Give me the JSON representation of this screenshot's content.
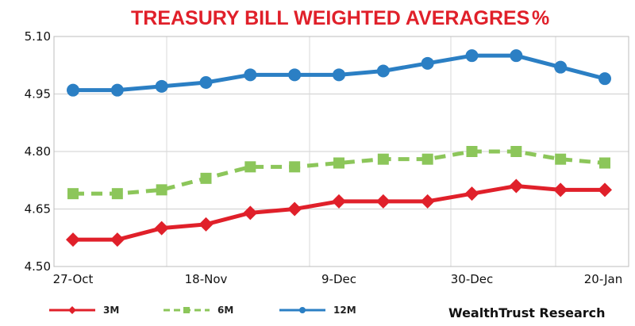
{
  "chart_data": {
    "type": "line",
    "title": "TREASURY BILL WEIGHTED AVERAGRES",
    "unit": "%",
    "source": "WealthTrust Research",
    "x_tick_labels": [
      "27-Oct",
      "18-Nov",
      "9-Dec",
      "30-Dec",
      "20-Jan"
    ],
    "x_tick_index": [
      0,
      3,
      6,
      9,
      12
    ],
    "y_tick_labels": [
      "4.50",
      "4.65",
      "4.80",
      "4.95",
      "5.10"
    ],
    "ylim": [
      4.5,
      5.1
    ],
    "grid": true,
    "legend_position": "bottom",
    "series": [
      {
        "name": "3M",
        "color": "#e0202a",
        "marker": "diamond",
        "values": [
          4.57,
          4.57,
          4.6,
          4.61,
          4.64,
          4.65,
          4.67,
          4.67,
          4.67,
          4.69,
          4.71,
          4.7,
          4.7
        ]
      },
      {
        "name": "6M",
        "color": "#8cc65a",
        "marker": "square",
        "dashed": true,
        "values": [
          4.69,
          4.69,
          4.7,
          4.73,
          4.76,
          4.76,
          4.77,
          4.78,
          4.78,
          4.8,
          4.8,
          4.78,
          4.77
        ]
      },
      {
        "name": "12M",
        "color": "#2b7fc4",
        "marker": "circle",
        "values": [
          4.96,
          4.96,
          4.97,
          4.98,
          5.0,
          5.0,
          5.0,
          5.01,
          5.03,
          5.05,
          5.05,
          5.02,
          4.99
        ]
      }
    ],
    "title_color": "#e0202a"
  }
}
